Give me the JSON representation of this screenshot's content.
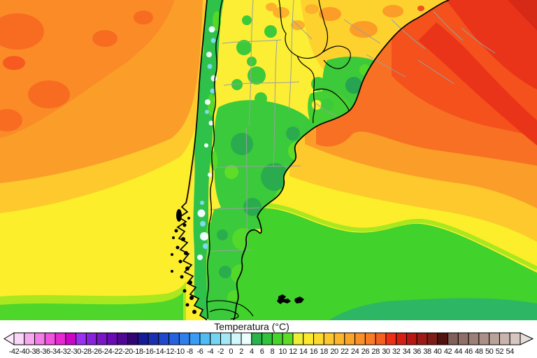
{
  "title": {
    "text": "Temperatura (°C)"
  },
  "colorbar": {
    "unit": "°C",
    "tick_labels": [
      "-42",
      "-40",
      "-38",
      "-36",
      "-34",
      "-32",
      "-30",
      "-28",
      "-26",
      "-24",
      "-22",
      "-20",
      "-18",
      "-16",
      "-14",
      "-12",
      "-10",
      "-8",
      "-6",
      "-4",
      "-2",
      "0",
      "2",
      "4",
      "6",
      "8",
      "10",
      "12",
      "14",
      "16",
      "18",
      "20",
      "22",
      "24",
      "26",
      "28",
      "30",
      "32",
      "34",
      "36",
      "38",
      "40",
      "42",
      "44",
      "46",
      "48",
      "50",
      "52",
      "54"
    ],
    "cell_colors": [
      "#fad6f8",
      "#f7a9f0",
      "#f47ee8",
      "#f152df",
      "#e827d3",
      "#cb04c6",
      "#9b30f0",
      "#8a22dc",
      "#7a15c8",
      "#6a0ab4",
      "#500795",
      "#330573",
      "#151a98",
      "#1a2fb2",
      "#1f48cb",
      "#2563de",
      "#2e7fec",
      "#3a9cf4",
      "#4fbcf4",
      "#74d5f2",
      "#a3e9f5",
      "#d1f7fa",
      "#ecfdfd",
      "#28b34b",
      "#2fc43c",
      "#45d42c",
      "#5cdc25",
      "#eeee35",
      "#fce92c",
      "#fdda2c",
      "#fdc82d",
      "#fcb62b",
      "#fba42a",
      "#fa9028",
      "#f97c25",
      "#f75f21",
      "#ef2e18",
      "#d61f14",
      "#b81712",
      "#9c1b16",
      "#7e1d18",
      "#4f1410",
      "#806058",
      "#8e7068",
      "#9c8078",
      "#ab9088",
      "#b9a29a",
      "#c8b4ac",
      "#d6c6c0"
    ],
    "left_arrow_color": "#fce9fc",
    "right_arrow_color": "#e7ddd9",
    "panel_background": "#ffffff",
    "text_color": "#111111"
  },
  "map": {
    "palette": {
      "ocean_dark_red": "#d62a17",
      "ocean_red": "#e93419",
      "ocean_red_orange": "#f4511c",
      "ocean_deep_orange": "#f87023",
      "ocean_orange": "#fb9e29",
      "ocean_yellow_orange": "#fdc92d",
      "ocean_yellow": "#fcee2b",
      "ocean_yellow_green": "#a9e71e",
      "ocean_green": "#41d22c",
      "ocean_teal_green": "#2db764",
      "land_yellow": "#fcee34",
      "land_warm_yellow": "#fdd22e",
      "land_orange": "#fb9d28",
      "land_red": "#f2511c",
      "land_green": "#3bca3b",
      "land_dark_green": "#2aac4e",
      "land_bright_green": "#55d929",
      "andes_green": "#2fc24a",
      "andes_snow_white": "#effdfd",
      "andes_ice_cyan": "#7fd9f3",
      "border_country": "#000000",
      "border_admin": "#9aa0a0"
    }
  }
}
